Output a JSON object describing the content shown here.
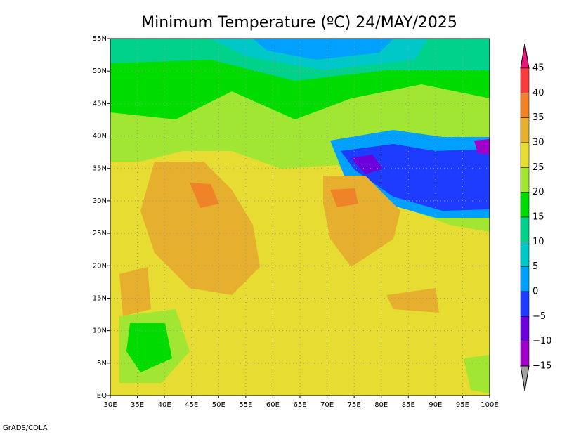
{
  "title": "Minimum Temperature (ºC) 24/MAY/2025",
  "lon_range": [
    30,
    100
  ],
  "lat_range": [
    0,
    55
  ],
  "lon_ticks": [
    {
      "value": 30,
      "label": "30E"
    },
    {
      "value": 35,
      "label": "35E"
    },
    {
      "value": 40,
      "label": "40E"
    },
    {
      "value": 45,
      "label": "45E"
    },
    {
      "value": 50,
      "label": "50E"
    },
    {
      "value": 55,
      "label": "55E"
    },
    {
      "value": 60,
      "label": "60E"
    },
    {
      "value": 65,
      "label": "65E"
    },
    {
      "value": 70,
      "label": "70E"
    },
    {
      "value": 75,
      "label": "75E"
    },
    {
      "value": 80,
      "label": "80E"
    },
    {
      "value": 85,
      "label": "85E"
    },
    {
      "value": 90,
      "label": "90E"
    },
    {
      "value": 95,
      "label": "95E"
    },
    {
      "value": 100,
      "label": "100E"
    }
  ],
  "lat_ticks": [
    {
      "value": 0,
      "label": "EQ"
    },
    {
      "value": 5,
      "label": "5N"
    },
    {
      "value": 10,
      "label": "10N"
    },
    {
      "value": 15,
      "label": "15N"
    },
    {
      "value": 20,
      "label": "20N"
    },
    {
      "value": 25,
      "label": "25N"
    },
    {
      "value": 30,
      "label": "30N"
    },
    {
      "value": 35,
      "label": "35N"
    },
    {
      "value": 40,
      "label": "40N"
    },
    {
      "value": 45,
      "label": "45N"
    },
    {
      "value": 50,
      "label": "50N"
    },
    {
      "value": 55,
      "label": "55N"
    }
  ],
  "colorbar": {
    "levels": [
      {
        "value": 45,
        "label": "45"
      },
      {
        "value": 40,
        "label": "40"
      },
      {
        "value": 35,
        "label": "35"
      },
      {
        "value": 30,
        "label": "30"
      },
      {
        "value": 25,
        "label": "25"
      },
      {
        "value": 20,
        "label": "20"
      },
      {
        "value": 15,
        "label": "15"
      },
      {
        "value": 10,
        "label": "10"
      },
      {
        "value": 5,
        "label": "5"
      },
      {
        "value": 0,
        "label": "0"
      },
      {
        "value": -5,
        "label": "−5"
      },
      {
        "value": -10,
        "label": "−10"
      },
      {
        "value": -15,
        "label": "−15"
      }
    ],
    "colors": [
      "#f0147a",
      "#fa3c3c",
      "#f08228",
      "#e6af2d",
      "#e6dc32",
      "#a0e632",
      "#00dc00",
      "#00d28c",
      "#00c8c8",
      "#00a0ff",
      "#1e3cff",
      "#6e00dc",
      "#a000c8",
      "#a0a0a0"
    ]
  },
  "credit": "GrADS/COLA"
}
